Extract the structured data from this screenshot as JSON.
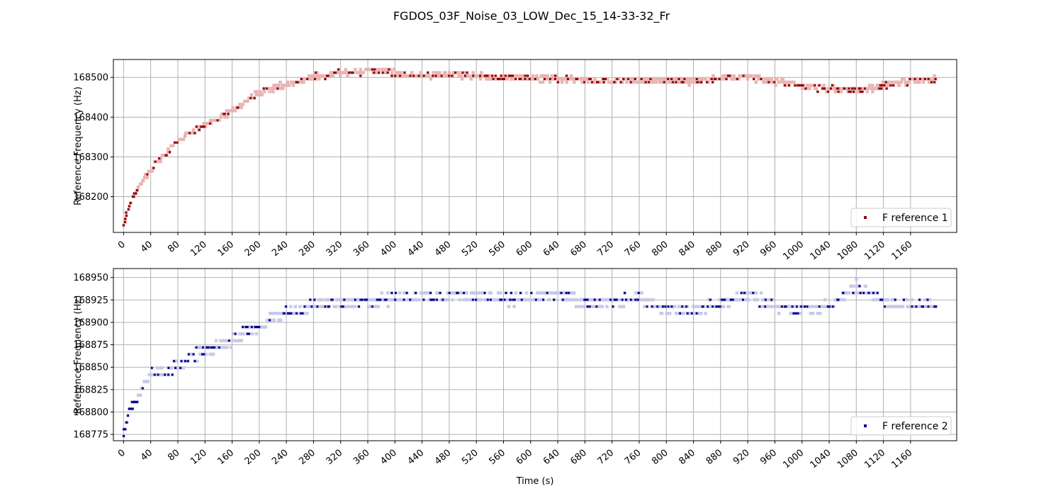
{
  "figure": {
    "title": "FGDOS_03F_Noise_03_LOW_Dec_15_14-33-32_Fr"
  },
  "chart_data": [
    {
      "type": "scatter",
      "ylabel": "Reference Frequency (Hz)",
      "xlabel": "",
      "xlim": [
        -15,
        1228
      ],
      "ylim": [
        168110,
        168545
      ],
      "xticks": [
        0,
        40,
        80,
        120,
        160,
        200,
        240,
        280,
        320,
        360,
        400,
        440,
        480,
        520,
        560,
        600,
        640,
        680,
        720,
        760,
        800,
        840,
        880,
        920,
        960,
        1000,
        1040,
        1080,
        1120,
        1160
      ],
      "yticks": [
        168200,
        168300,
        168400,
        168500
      ],
      "grid": true,
      "legend": "lower-right",
      "series": [
        {
          "name": "F reference 1",
          "color": "#8b0000",
          "halo_color": "#e8b4b4",
          "t_end": 1198,
          "y_start": 168128,
          "y_plateau": 168505,
          "y_late": 168470,
          "y_final": 168497,
          "step": 8,
          "spread": 14,
          "points": [
            [
              0,
              168128
            ],
            [
              5,
              168160
            ],
            [
              10,
              168185
            ],
            [
              20,
              168220
            ],
            [
              40,
              168268
            ],
            [
              60,
              168305
            ],
            [
              80,
              168340
            ],
            [
              100,
              168360
            ],
            [
              120,
              168382
            ],
            [
              140,
              168395
            ],
            [
              160,
              168415
            ],
            [
              180,
              168440
            ],
            [
              200,
              168460
            ],
            [
              220,
              168472
            ],
            [
              240,
              168483
            ],
            [
              260,
              168490
            ],
            [
              280,
              168502
            ],
            [
              320,
              168510
            ],
            [
              360,
              168516
            ],
            [
              400,
              168512
            ],
            [
              440,
              168505
            ],
            [
              480,
              168508
            ],
            [
              520,
              168504
            ],
            [
              560,
              168500
            ],
            [
              600,
              168498
            ],
            [
              640,
              168495
            ],
            [
              680,
              168492
            ],
            [
              720,
              168490
            ],
            [
              760,
              168492
            ],
            [
              800,
              168493
            ],
            [
              840,
              168490
            ],
            [
              880,
              168498
            ],
            [
              920,
              168502
            ],
            [
              960,
              168490
            ],
            [
              1000,
              168478
            ],
            [
              1040,
              168472
            ],
            [
              1080,
              168468
            ],
            [
              1120,
              168478
            ],
            [
              1160,
              168492
            ],
            [
              1198,
              168497
            ]
          ]
        }
      ]
    },
    {
      "type": "scatter",
      "ylabel": "Reference Frequency (Hz)",
      "xlabel": "Time (s)",
      "xlim": [
        -15,
        1228
      ],
      "ylim": [
        168768,
        168960
      ],
      "xticks": [
        0,
        40,
        80,
        120,
        160,
        200,
        240,
        280,
        320,
        360,
        400,
        440,
        480,
        520,
        560,
        600,
        640,
        680,
        720,
        760,
        800,
        840,
        880,
        920,
        960,
        1000,
        1040,
        1080,
        1120,
        1160
      ],
      "yticks": [
        168775,
        168800,
        168825,
        168850,
        168875,
        168900,
        168925,
        168950
      ],
      "grid": true,
      "legend": "lower-right",
      "series": [
        {
          "name": "F reference 2",
          "color": "#00008b",
          "halo_color": "#c8c8e6",
          "t_end": 1198,
          "step": 7.6,
          "spread": 10,
          "points": [
            [
              0,
              168778
            ],
            [
              5,
              168792
            ],
            [
              10,
              168803
            ],
            [
              20,
              168815
            ],
            [
              30,
              168830
            ],
            [
              40,
              168842
            ],
            [
              60,
              168845
            ],
            [
              80,
              168852
            ],
            [
              100,
              168862
            ],
            [
              120,
              168868
            ],
            [
              140,
              168874
            ],
            [
              160,
              168880
            ],
            [
              180,
              168890
            ],
            [
              200,
              168895
            ],
            [
              220,
              168905
            ],
            [
              240,
              168910
            ],
            [
              260,
              168912
            ],
            [
              280,
              168920
            ],
            [
              320,
              168922
            ],
            [
              360,
              168924
            ],
            [
              400,
              168925
            ],
            [
              440,
              168930
            ],
            [
              480,
              168928
            ],
            [
              520,
              168930
            ],
            [
              560,
              168925
            ],
            [
              600,
              168928
            ],
            [
              640,
              168932
            ],
            [
              680,
              168922
            ],
            [
              720,
              168922
            ],
            [
              760,
              168928
            ],
            [
              800,
              168914
            ],
            [
              840,
              168914
            ],
            [
              880,
              168920
            ],
            [
              920,
              168930
            ],
            [
              960,
              168918
            ],
            [
              1000,
              168914
            ],
            [
              1040,
              168918
            ],
            [
              1080,
              168940
            ],
            [
              1120,
              168924
            ],
            [
              1160,
              168918
            ],
            [
              1198,
              168920
            ]
          ]
        }
      ]
    }
  ]
}
